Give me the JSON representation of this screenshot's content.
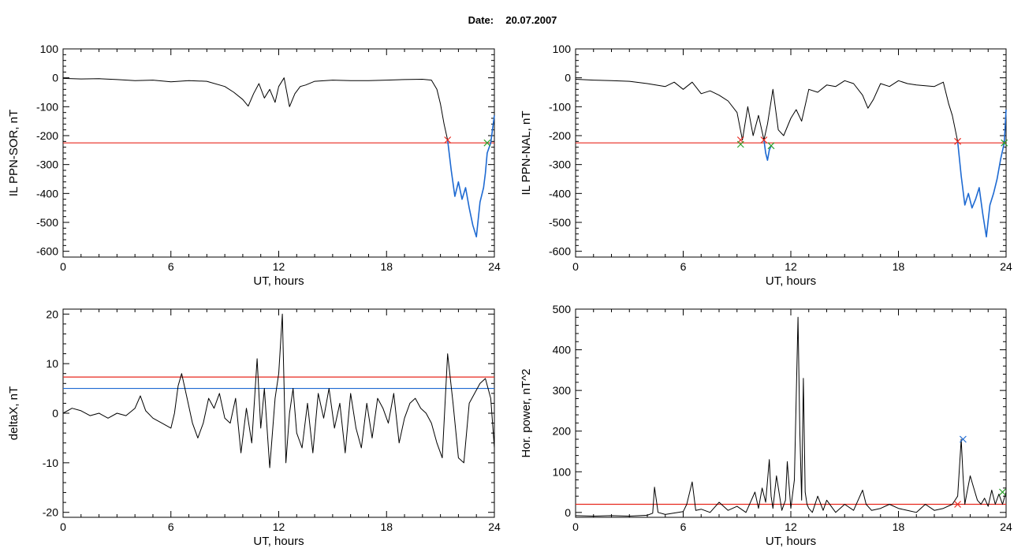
{
  "page": {
    "date_label": "Date:",
    "date_value": "20.07.2007"
  },
  "colors": {
    "trace": "#000000",
    "threshold_red": "#e8281e",
    "threshold_blue": "#1e6ad2",
    "segment_blue": "#1e6ad2",
    "marker_red": "#e8281e",
    "marker_green": "#2ca02c",
    "marker_blue": "#1e6ad2"
  },
  "chart_data": [
    {
      "type": "line",
      "id": "sor",
      "xlabel": "UT, hours",
      "ylabel": "IL PPN-SOR, nT",
      "xlim": [
        0,
        24
      ],
      "ylim": [
        -620,
        100
      ],
      "xticks": [
        0,
        6,
        12,
        18,
        24
      ],
      "yticks": [
        -600,
        -500,
        -400,
        -300,
        -200,
        -100,
        0,
        100
      ],
      "threshold_lines": [
        {
          "y": -225,
          "color": "red"
        }
      ],
      "series": [
        {
          "color": "black",
          "x": [
            0,
            1,
            2,
            3,
            4,
            5,
            6,
            7,
            8,
            9,
            9.5,
            10,
            10.3,
            10.6,
            10.9,
            11.2,
            11.5,
            11.8,
            12,
            12.3,
            12.6,
            12.9,
            13.2,
            13.5,
            14,
            15,
            16,
            17,
            18,
            19,
            20,
            20.5,
            20.8,
            21,
            21.2,
            21.4
          ],
          "y": [
            -2,
            -4,
            -3,
            -6,
            -10,
            -8,
            -14,
            -10,
            -12,
            -30,
            -50,
            -75,
            -98,
            -55,
            -20,
            -70,
            -40,
            -85,
            -30,
            0,
            -100,
            -55,
            -30,
            -25,
            -12,
            -8,
            -10,
            -10,
            -8,
            -6,
            -5,
            -8,
            -40,
            -90,
            -160,
            -215
          ]
        },
        {
          "color": "blue",
          "x": [
            21.4,
            21.6,
            21.8,
            22,
            22.2,
            22.4,
            22.6,
            22.8,
            23,
            23.2,
            23.4,
            23.5,
            23.6,
            23.8,
            24
          ],
          "y": [
            -215,
            -320,
            -410,
            -360,
            -420,
            -380,
            -450,
            -510,
            -550,
            -430,
            -380,
            -330,
            -260,
            -225,
            -130
          ]
        }
      ],
      "markers": [
        {
          "x": 21.4,
          "y": -215,
          "color": "red"
        },
        {
          "x": 23.6,
          "y": -225,
          "color": "green"
        }
      ]
    },
    {
      "type": "line",
      "id": "nal",
      "xlabel": "UT, hours",
      "ylabel": "IL PPN-NAL, nT",
      "xlim": [
        0,
        24
      ],
      "ylim": [
        -620,
        100
      ],
      "xticks": [
        0,
        6,
        12,
        18,
        24
      ],
      "yticks": [
        -600,
        -500,
        -400,
        -300,
        -200,
        -100,
        0,
        100
      ],
      "threshold_lines": [
        {
          "y": -225,
          "color": "red"
        }
      ],
      "series": [
        {
          "color": "black",
          "x": [
            0,
            1,
            2,
            3,
            4,
            5,
            5.5,
            6,
            6.5,
            7,
            7.5,
            8,
            8.5,
            9,
            9.3,
            9.6,
            9.9,
            10.2,
            10.5,
            10.7,
            11,
            11.3,
            11.6,
            12,
            12.3,
            12.6,
            13,
            13.5,
            14,
            14.5,
            15,
            15.5,
            16,
            16.3,
            16.6,
            17,
            17.5,
            18,
            18.5,
            19,
            20,
            20.5,
            20.8,
            21,
            21.3
          ],
          "y": [
            -5,
            -8,
            -10,
            -12,
            -20,
            -30,
            -15,
            -40,
            -15,
            -55,
            -45,
            -60,
            -80,
            -120,
            -215,
            -100,
            -200,
            -130,
            -215,
            -160,
            -40,
            -180,
            -200,
            -140,
            -110,
            -150,
            -40,
            -50,
            -25,
            -30,
            -10,
            -20,
            -60,
            -105,
            -75,
            -20,
            -30,
            -10,
            -20,
            -25,
            -30,
            -15,
            -90,
            -130,
            -220
          ]
        },
        {
          "color": "blue",
          "x": [
            10.5,
            10.6,
            10.7,
            10.8,
            10.9
          ],
          "y": [
            -215,
            -260,
            -285,
            -250,
            -235
          ]
        },
        {
          "color": "blue",
          "x": [
            21.3,
            21.5,
            21.7,
            21.9,
            22.1,
            22.3,
            22.5,
            22.7,
            22.9,
            23.1,
            23.3,
            23.5,
            23.7,
            23.9,
            24
          ],
          "y": [
            -220,
            -340,
            -440,
            -400,
            -450,
            -420,
            -380,
            -470,
            -550,
            -440,
            -400,
            -350,
            -280,
            -225,
            -110
          ]
        }
      ],
      "markers": [
        {
          "x": 9.2,
          "y": -215,
          "color": "red"
        },
        {
          "x": 9.2,
          "y": -230,
          "color": "green"
        },
        {
          "x": 10.5,
          "y": -215,
          "color": "red"
        },
        {
          "x": 10.9,
          "y": -235,
          "color": "green"
        },
        {
          "x": 21.3,
          "y": -220,
          "color": "red"
        },
        {
          "x": 23.9,
          "y": -225,
          "color": "green"
        }
      ]
    },
    {
      "type": "line",
      "id": "deltax",
      "xlabel": "UT, hours",
      "ylabel": "deltaX, nT",
      "xlim": [
        0,
        24
      ],
      "ylim": [
        -21,
        21
      ],
      "xticks": [
        0,
        6,
        12,
        18,
        24
      ],
      "yticks": [
        -20,
        -10,
        0,
        10,
        20
      ],
      "threshold_lines": [
        {
          "y": 7.3,
          "color": "red"
        },
        {
          "y": 5.0,
          "color": "blue"
        }
      ],
      "series": [
        {
          "color": "black",
          "x": [
            0,
            0.5,
            1,
            1.5,
            2,
            2.5,
            3,
            3.5,
            4,
            4.3,
            4.6,
            5,
            5.5,
            6,
            6.2,
            6.4,
            6.6,
            6.9,
            7.2,
            7.5,
            7.8,
            8.1,
            8.4,
            8.7,
            9,
            9.3,
            9.6,
            9.9,
            10.2,
            10.5,
            10.8,
            11,
            11.2,
            11.5,
            11.8,
            12,
            12.2,
            12.4,
            12.6,
            12.8,
            13,
            13.3,
            13.6,
            13.9,
            14.2,
            14.5,
            14.8,
            15.1,
            15.4,
            15.7,
            16,
            16.3,
            16.6,
            16.9,
            17.2,
            17.5,
            17.8,
            18.1,
            18.4,
            18.7,
            19,
            19.3,
            19.6,
            19.9,
            20.2,
            20.5,
            20.8,
            21.1,
            21.4,
            21.7,
            22,
            22.3,
            22.6,
            22.9,
            23.2,
            23.5,
            23.8,
            24
          ],
          "y": [
            0,
            1,
            0.5,
            -0.5,
            0,
            -1,
            0,
            -0.5,
            1,
            3.5,
            0.5,
            -1,
            -2,
            -3,
            0,
            5.5,
            8,
            3,
            -2,
            -5,
            -2,
            3,
            1,
            4,
            -1,
            -2,
            3,
            -8,
            1,
            -6,
            11,
            -3,
            5,
            -11,
            3,
            8,
            20,
            -10,
            0,
            5,
            -4,
            -7,
            2,
            -8,
            4,
            -1,
            5,
            -3,
            2,
            -8,
            4,
            -3,
            -7,
            2,
            -5,
            3,
            1,
            -2,
            4,
            -6,
            -1,
            2,
            3,
            1,
            0,
            -2,
            -6,
            -9,
            12,
            2,
            -9,
            -10,
            2,
            4,
            6,
            7,
            3,
            -7
          ]
        }
      ],
      "markers": []
    },
    {
      "type": "line",
      "id": "power",
      "xlabel": "UT, hours",
      "ylabel": "Hor. power, nT^2",
      "xlim": [
        0,
        24
      ],
      "ylim": [
        -12,
        500
      ],
      "xticks": [
        0,
        6,
        12,
        18,
        24
      ],
      "yticks": [
        0,
        100,
        200,
        300,
        400,
        500
      ],
      "threshold_lines": [
        {
          "y": 20,
          "color": "red"
        }
      ],
      "series": [
        {
          "color": "black",
          "x": [
            0,
            1,
            2,
            3,
            4,
            4.3,
            4.4,
            4.6,
            5,
            6,
            6.2,
            6.5,
            6.7,
            7,
            7.5,
            8,
            8.5,
            9,
            9.5,
            10,
            10.2,
            10.4,
            10.6,
            10.8,
            10.9,
            11,
            11.2,
            11.5,
            11.7,
            11.8,
            12,
            12.2,
            12.4,
            12.5,
            12.6,
            12.7,
            12.8,
            12.9,
            13,
            13.2,
            13.5,
            13.8,
            14,
            14.5,
            15,
            15.5,
            16,
            16.2,
            16.5,
            17,
            17.5,
            18,
            18.5,
            19,
            19.5,
            20,
            20.5,
            21,
            21.3,
            21.5,
            21.6,
            21.7,
            21.8,
            22,
            22.2,
            22.4,
            22.6,
            22.8,
            23,
            23.2,
            23.4,
            23.6,
            23.8,
            24
          ],
          "y": [
            -8,
            -9,
            -8,
            -9,
            -7,
            -2,
            62,
            0,
            -5,
            2,
            20,
            75,
            5,
            8,
            0,
            25,
            5,
            15,
            0,
            50,
            10,
            60,
            25,
            130,
            40,
            10,
            90,
            5,
            30,
            125,
            10,
            80,
            480,
            200,
            30,
            330,
            50,
            20,
            10,
            0,
            40,
            5,
            30,
            0,
            20,
            5,
            55,
            20,
            5,
            10,
            20,
            10,
            5,
            0,
            20,
            5,
            10,
            20,
            40,
            180,
            90,
            20,
            45,
            90,
            60,
            30,
            20,
            35,
            15,
            55,
            20,
            45,
            20,
            50
          ]
        }
      ],
      "markers": [
        {
          "x": 21.3,
          "y": 20,
          "color": "red"
        },
        {
          "x": 21.6,
          "y": 180,
          "color": "blue"
        },
        {
          "x": 23.8,
          "y": 50,
          "color": "green"
        }
      ]
    }
  ]
}
